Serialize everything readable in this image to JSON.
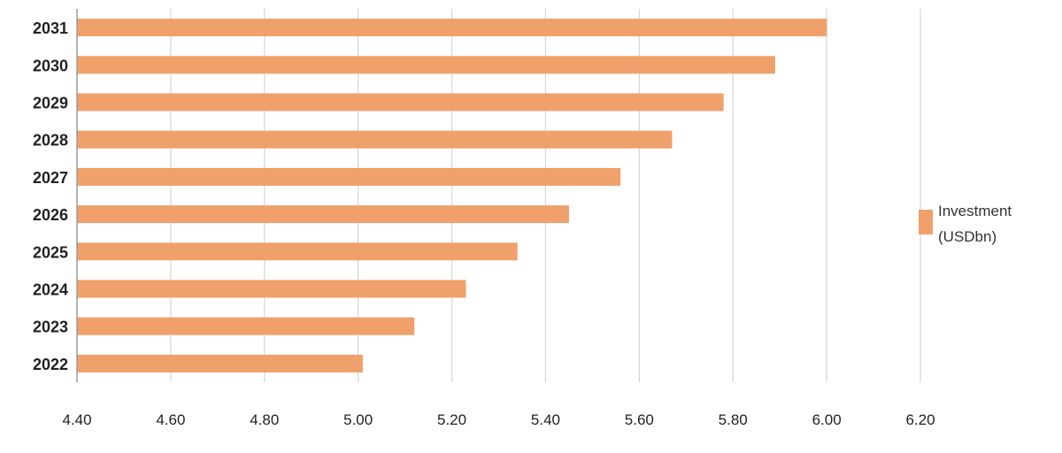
{
  "chart_data": {
    "type": "bar",
    "orientation": "horizontal",
    "categories": [
      "2031",
      "2030",
      "2029",
      "2028",
      "2027",
      "2026",
      "2025",
      "2024",
      "2023",
      "2022"
    ],
    "series": [
      {
        "name": "Investment (USDbn)",
        "color": "#f0a06a",
        "values": [
          6.0,
          5.89,
          5.78,
          5.67,
          5.56,
          5.45,
          5.34,
          5.23,
          5.12,
          5.01
        ]
      }
    ],
    "xlim": [
      4.4,
      6.2
    ],
    "xticks": [
      "4.40",
      "4.60",
      "4.80",
      "5.00",
      "5.20",
      "5.40",
      "5.60",
      "5.80",
      "6.00",
      "6.20"
    ],
    "grid": "vertical",
    "legend_position": "right"
  }
}
